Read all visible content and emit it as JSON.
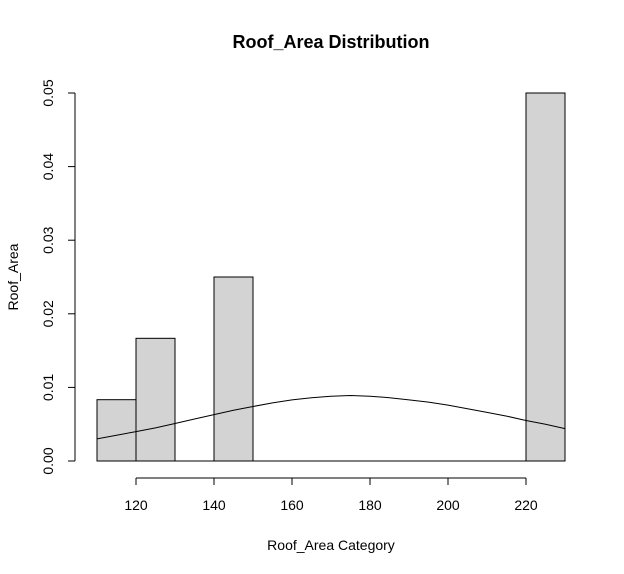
{
  "chart_data": {
    "type": "bar",
    "title": "Roof_Area Distribution",
    "xlabel": "Roof_Area Category",
    "ylabel": "Roof_Area",
    "bins": [
      {
        "x0": 110,
        "x1": 120,
        "density": 0.00833
      },
      {
        "x0": 120,
        "x1": 130,
        "density": 0.01667
      },
      {
        "x0": 130,
        "x1": 140,
        "density": 0
      },
      {
        "x0": 140,
        "x1": 150,
        "density": 0.025
      },
      {
        "x0": 150,
        "x1": 160,
        "density": 0
      },
      {
        "x0": 160,
        "x1": 170,
        "density": 0
      },
      {
        "x0": 170,
        "x1": 180,
        "density": 0
      },
      {
        "x0": 180,
        "x1": 190,
        "density": 0
      },
      {
        "x0": 190,
        "x1": 200,
        "density": 0
      },
      {
        "x0": 200,
        "x1": 210,
        "density": 0
      },
      {
        "x0": 210,
        "x1": 220,
        "density": 0
      },
      {
        "x0": 220,
        "x1": 230,
        "density": 0.05
      }
    ],
    "density_curve": {
      "x": [
        110,
        115,
        120,
        125,
        130,
        135,
        140,
        145,
        150,
        155,
        160,
        165,
        170,
        175,
        180,
        185,
        190,
        195,
        200,
        205,
        210,
        215,
        220,
        225,
        230
      ],
      "y": [
        0.003,
        0.0035,
        0.004,
        0.0045,
        0.0051,
        0.0057,
        0.0063,
        0.0069,
        0.0074,
        0.0079,
        0.0083,
        0.0086,
        0.0088,
        0.0089,
        0.0088,
        0.0086,
        0.0083,
        0.008,
        0.0076,
        0.0071,
        0.0066,
        0.0061,
        0.0055,
        0.005,
        0.0044
      ]
    },
    "x_ticks": [
      "120",
      "140",
      "160",
      "180",
      "200",
      "220"
    ],
    "y_ticks": [
      "0.00",
      "0.01",
      "0.02",
      "0.03",
      "0.04",
      "0.05"
    ],
    "xlim": [
      110,
      230
    ],
    "ylim": [
      0,
      0.05
    ],
    "bar_fill": "#d3d3d3",
    "bar_stroke": "#000000",
    "grid": false
  }
}
